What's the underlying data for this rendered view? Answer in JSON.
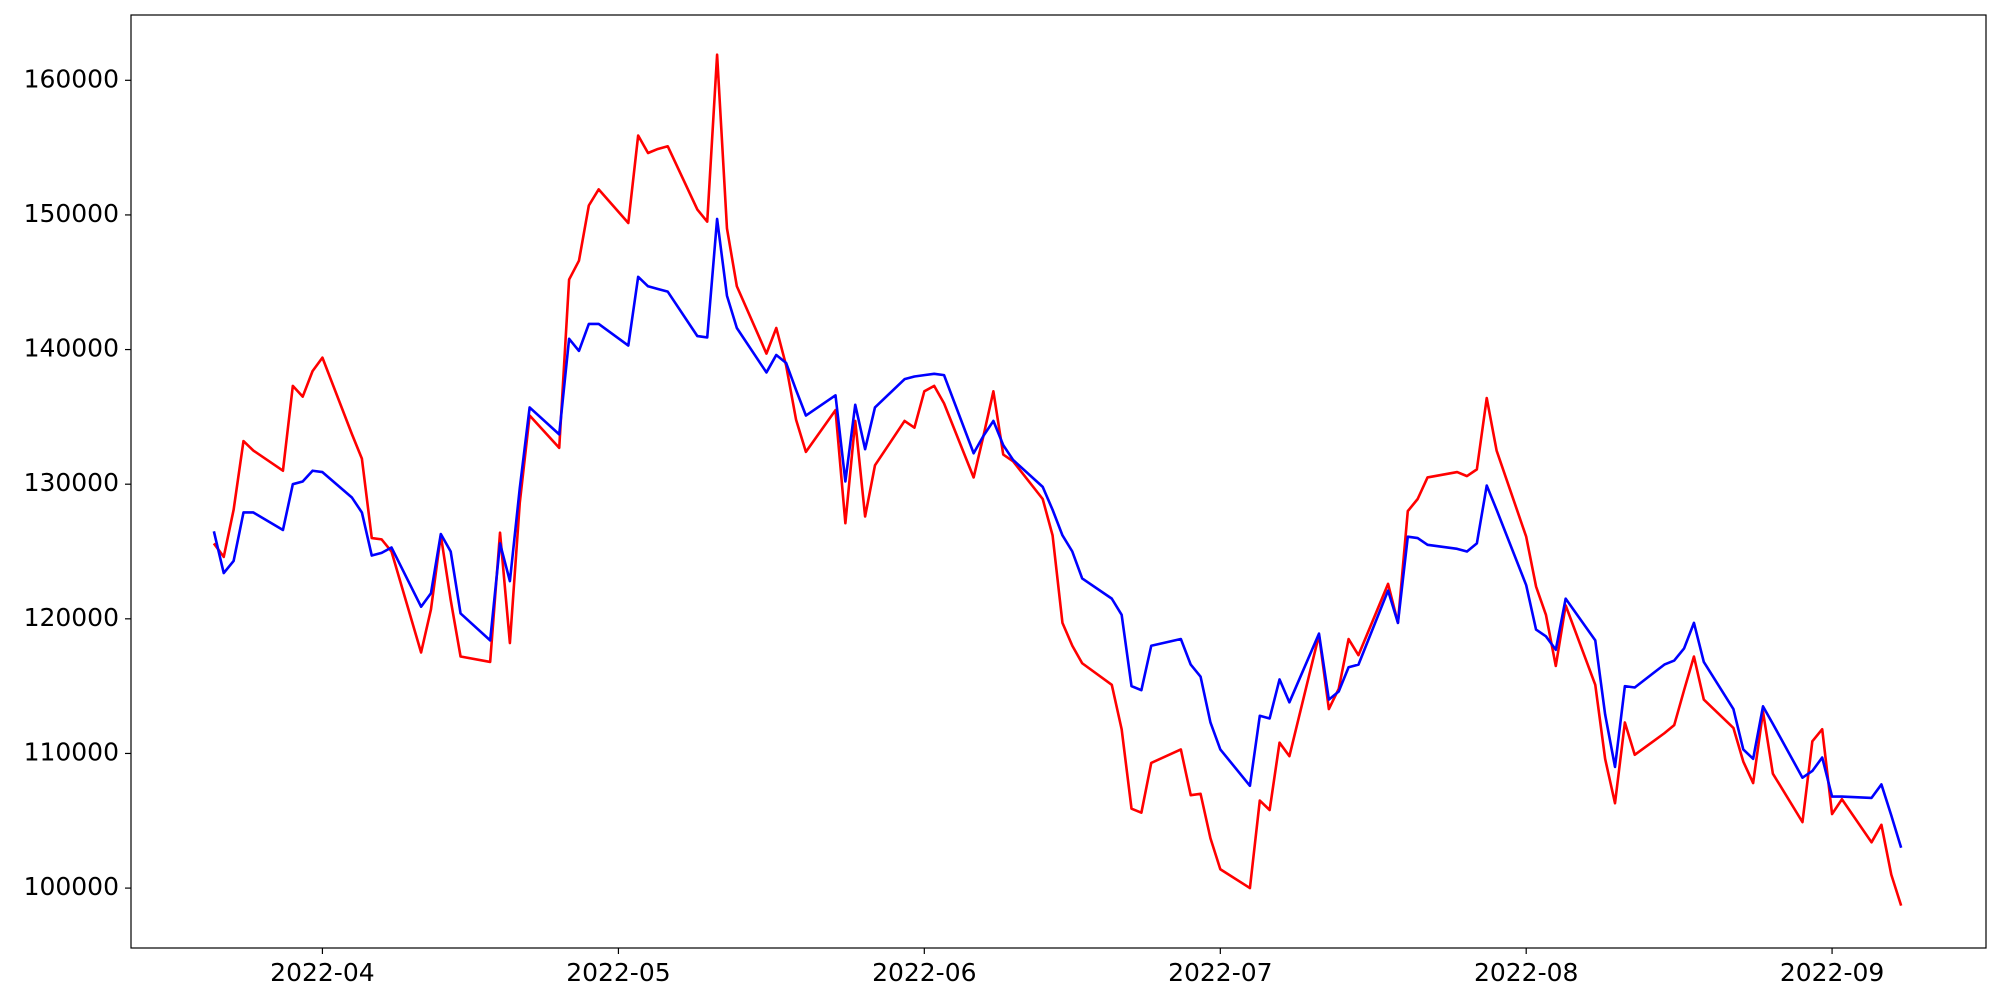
{
  "chart_data": {
    "type": "line",
    "x": [
      80,
      81,
      82,
      83,
      84,
      87,
      88,
      89,
      90,
      91,
      94,
      95,
      96,
      97,
      98,
      101,
      102,
      103,
      104,
      105,
      108,
      109,
      110,
      111,
      112,
      115,
      116,
      117,
      118,
      119,
      122,
      123,
      124,
      125,
      126,
      129,
      130,
      131,
      132,
      133,
      136,
      137,
      138,
      139,
      140,
      143,
      144,
      145,
      146,
      147,
      150,
      151,
      152,
      153,
      154,
      157,
      158,
      159,
      160,
      161,
      164,
      165,
      166,
      167,
      168,
      171,
      172,
      173,
      174,
      175,
      178,
      179,
      180,
      181,
      182,
      185,
      186,
      187,
      188,
      189,
      192,
      193,
      194,
      195,
      196,
      199,
      200,
      201,
      202,
      203,
      206,
      207,
      208,
      209,
      210,
      213,
      214,
      215,
      216,
      217,
      220,
      221,
      222,
      223,
      224,
      227,
      228,
      229,
      230,
      231,
      234,
      235,
      236,
      237,
      238,
      241,
      242,
      243,
      244,
      245,
      248,
      249,
      250,
      251
    ],
    "series": [
      {
        "color": "#ff0000",
        "values": [
          125600,
          124600,
          128100,
          133200,
          132500,
          131000,
          137300,
          136500,
          138400,
          139400,
          133700,
          131900,
          126000,
          125900,
          125000,
          117500,
          120700,
          126200,
          121400,
          117200,
          116800,
          126400,
          118200,
          128600,
          135100,
          132700,
          145200,
          146600,
          150700,
          151900,
          149400,
          155900,
          154600,
          154900,
          155100,
          150400,
          149500,
          161900,
          149000,
          144700,
          139700,
          141600,
          138800,
          134800,
          132400,
          135500,
          127100,
          134700,
          127600,
          131400,
          134700,
          134200,
          136900,
          137300,
          136000,
          130500,
          133600,
          136900,
          132200,
          131700,
          128900,
          126200,
          119700,
          118000,
          116700,
          115100,
          111800,
          105900,
          105600,
          109300,
          110300,
          106900,
          107000,
          103700,
          101400,
          100000,
          106500,
          105800,
          110800,
          109800,
          118800,
          113300,
          114800,
          118500,
          117300,
          122600,
          119700,
          128000,
          128900,
          130500,
          130900,
          130600,
          131100,
          136400,
          132500,
          126100,
          122400,
          120300,
          116500,
          121000,
          115100,
          109600,
          106300,
          112300,
          109900,
          111500,
          112100,
          114700,
          117200,
          114000,
          111900,
          109400,
          107800,
          113100,
          108500,
          104900,
          110900,
          111800,
          105500,
          106600,
          103400,
          104700,
          101000,
          98700
        ]
      },
      {
        "color": "#0000ff",
        "values": [
          126500,
          123400,
          124300,
          127900,
          127900,
          126600,
          130000,
          130200,
          131000,
          130900,
          129000,
          127900,
          124700,
          124900,
          125300,
          120900,
          121900,
          126300,
          125000,
          120400,
          118400,
          125600,
          122800,
          129700,
          135700,
          133700,
          140800,
          139900,
          141900,
          141900,
          140300,
          145400,
          144700,
          144500,
          144300,
          141000,
          140900,
          149700,
          144000,
          141600,
          138300,
          139600,
          139000,
          137000,
          135100,
          136600,
          130200,
          135900,
          132600,
          135700,
          137800,
          138000,
          138100,
          138200,
          138100,
          132300,
          133600,
          134700,
          132900,
          131800,
          129800,
          128100,
          126200,
          125000,
          123000,
          121500,
          120300,
          115000,
          114700,
          118000,
          118500,
          116600,
          115700,
          112300,
          110300,
          107600,
          112800,
          112600,
          115500,
          113800,
          118900,
          114000,
          114600,
          116400,
          116600,
          122100,
          119700,
          126100,
          126000,
          125500,
          125200,
          125000,
          125600,
          129900,
          128100,
          122500,
          119200,
          118700,
          117700,
          121500,
          118400,
          112900,
          109000,
          115000,
          114900,
          116600,
          116900,
          117800,
          119700,
          116800,
          113300,
          110300,
          109600,
          113500,
          112200,
          108200,
          108700,
          109700,
          106800,
          106800,
          106700,
          107700,
          105400,
          103000
        ]
      }
    ],
    "xlim": [
      71.6,
      259.6
    ],
    "xticks": [
      {
        "value": 91,
        "label": "2022-04"
      },
      {
        "value": 121,
        "label": "2022-05"
      },
      {
        "value": 152,
        "label": "2022-06"
      },
      {
        "value": 182,
        "label": "2022-07"
      },
      {
        "value": 213,
        "label": "2022-08"
      },
      {
        "value": 244,
        "label": "2022-09"
      }
    ],
    "ylim": [
      95550,
      164850
    ],
    "yticks": [
      100000,
      110000,
      120000,
      130000,
      140000,
      150000,
      160000
    ],
    "grid": false
  }
}
